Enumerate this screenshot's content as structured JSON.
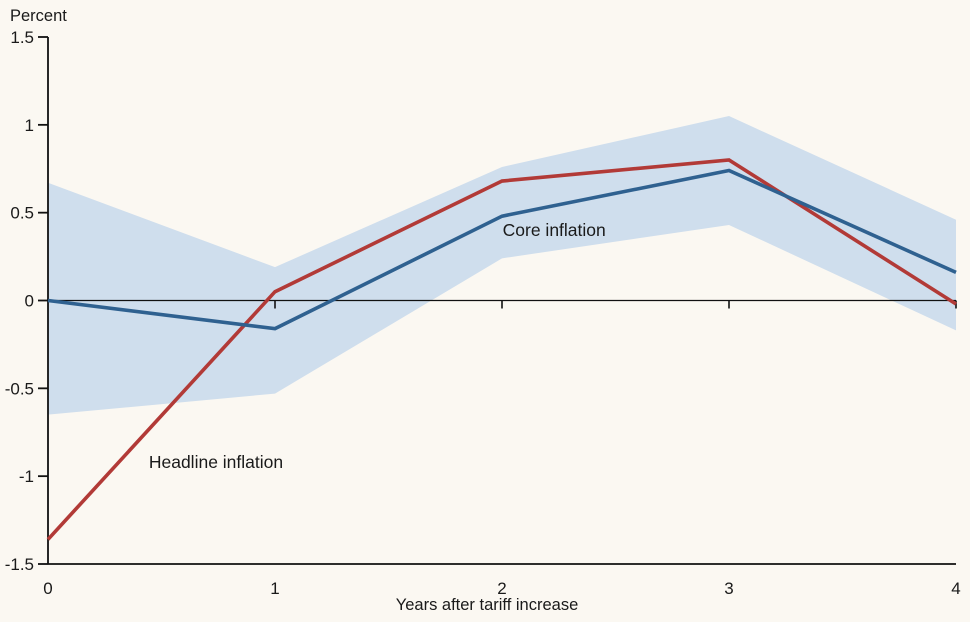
{
  "chart_data": {
    "type": "line",
    "title": "",
    "ylabel": "Percent",
    "xlabel": "Years after tariff increase",
    "x": [
      0,
      1,
      2,
      3,
      4
    ],
    "xlim": [
      0,
      4
    ],
    "ylim": [
      -1.5,
      1.5
    ],
    "grid": false,
    "zero_line": true,
    "legend_position": "inline-annotations",
    "xticks": [
      {
        "value": 0,
        "label": "0"
      },
      {
        "value": 1,
        "label": "1"
      },
      {
        "value": 2,
        "label": "2"
      },
      {
        "value": 3,
        "label": "3"
      },
      {
        "value": 4,
        "label": "4"
      }
    ],
    "yticks": [
      {
        "value": 1.5,
        "label": "1.5"
      },
      {
        "value": 1,
        "label": "1"
      },
      {
        "value": 0.5,
        "label": "0.5"
      },
      {
        "value": 0,
        "label": "0"
      },
      {
        "value": -0.5,
        "label": "-0.5"
      },
      {
        "value": -1,
        "label": "-1"
      },
      {
        "value": -1.5,
        "label": "-1.5"
      }
    ],
    "series": [
      {
        "name": "Headline inflation",
        "color": "#b23a37",
        "values": [
          -1.36,
          0.05,
          0.68,
          0.8,
          -0.02
        ]
      },
      {
        "name": "Core inflation",
        "color": "#2f6190",
        "values": [
          0.0,
          -0.16,
          0.48,
          0.74,
          0.16
        ]
      }
    ],
    "band": {
      "series": "Core inflation",
      "color": "#cfdeed",
      "upper": [
        0.67,
        0.19,
        0.76,
        1.05,
        0.46
      ],
      "lower": [
        -0.65,
        -0.53,
        0.24,
        0.43,
        -0.17
      ]
    },
    "annotations": [
      {
        "text": "Headline inflation",
        "x": 0.74,
        "y": -0.92,
        "color": "#b2403c"
      },
      {
        "text": "Core inflation",
        "x": 2.23,
        "y": 0.4,
        "color": "#2f6190"
      }
    ]
  },
  "colors": {
    "background": "#fbf8f2",
    "axis": "#111111",
    "zero_line": "#111111",
    "text": "#1a1a1a"
  }
}
